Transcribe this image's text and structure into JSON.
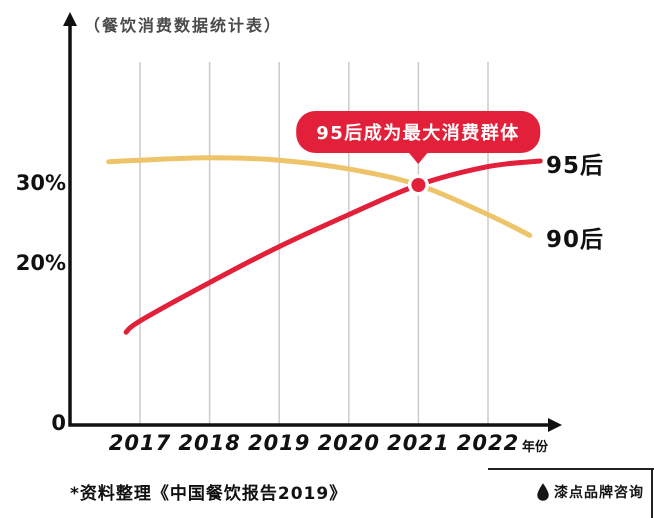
{
  "title": "（餐饮消费数据统计表）",
  "callout": {
    "text": "95后成为最大消费群体"
  },
  "footer": {
    "source_note": "*资料整理《中国餐饮报告2019》"
  },
  "brand": {
    "name": "漆点品牌咨询",
    "icon": "droplet-icon"
  },
  "colors": {
    "accent_red": "#e2203a",
    "accent_yellow": "#eec46a",
    "grid": "#cbcbcb",
    "axis": "#111111",
    "callout_text": "#ffffff"
  },
  "chart_data": {
    "type": "line",
    "title": "餐饮消费数据统计表",
    "xlabel": "年份",
    "ylabel": "",
    "categories": [
      2017,
      2018,
      2019,
      2020,
      2021,
      2022
    ],
    "y_ticks": [
      {
        "value": 30,
        "label": "30%"
      },
      {
        "value": 20,
        "label": "20%"
      },
      {
        "value": 0,
        "label": "0"
      }
    ],
    "ylim": [
      0,
      42
    ],
    "grid": "vertical-only",
    "legend_position": "right-line-end-labels",
    "series": [
      {
        "name": "95后",
        "color": "#e2203a",
        "points": [
          [
            2016.8,
            11.6
          ],
          [
            2017,
            13.0
          ],
          [
            2018,
            17.8
          ],
          [
            2019,
            22.3
          ],
          [
            2020,
            26.3
          ],
          [
            2021,
            30.0
          ],
          [
            2022,
            32.3
          ],
          [
            2022.75,
            33.0
          ]
        ]
      },
      {
        "name": "90后",
        "color": "#eec46a",
        "points": [
          [
            2016.55,
            32.9
          ],
          [
            2017,
            33.1
          ],
          [
            2018,
            33.4
          ],
          [
            2019,
            33.1
          ],
          [
            2020,
            32.0
          ],
          [
            2021,
            30.0
          ],
          [
            2022,
            26.3
          ],
          [
            2022.6,
            23.7
          ]
        ]
      }
    ],
    "annotation": {
      "text": "95后成为最大消费群体",
      "at": {
        "x": 2021,
        "y": 30
      }
    },
    "intersection_marker": {
      "x": 2021,
      "y": 30
    }
  }
}
